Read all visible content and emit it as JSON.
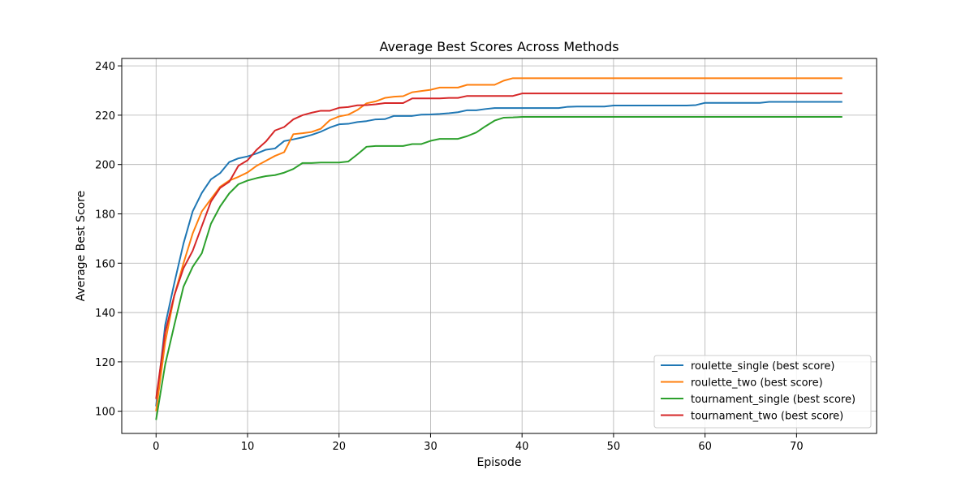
{
  "chart_data": {
    "type": "line",
    "title": "Average Best Scores Across Methods",
    "xlabel": "Episode",
    "ylabel": "Average Best Score",
    "xlim": [
      -3.75,
      78.75
    ],
    "ylim": [
      91,
      243
    ],
    "xticks": [
      0,
      10,
      20,
      30,
      40,
      50,
      60,
      70
    ],
    "yticks": [
      100,
      120,
      140,
      160,
      180,
      200,
      220,
      240
    ],
    "grid": true,
    "legend_position": "lower-right",
    "x": [
      0,
      1,
      2,
      3,
      4,
      5,
      6,
      7,
      8,
      9,
      10,
      11,
      12,
      13,
      14,
      15,
      16,
      17,
      18,
      19,
      20,
      21,
      22,
      23,
      24,
      25,
      26,
      27,
      28,
      29,
      30,
      31,
      32,
      33,
      34,
      35,
      36,
      37,
      38,
      39,
      40,
      41,
      42,
      43,
      44,
      45,
      46,
      47,
      48,
      49,
      50,
      51,
      52,
      53,
      54,
      55,
      56,
      57,
      58,
      59,
      60,
      61,
      62,
      63,
      64,
      65,
      66,
      67,
      68,
      69,
      70,
      71,
      72,
      73,
      74,
      75
    ],
    "series": [
      {
        "name": "roulette_single (best score)",
        "color": "#1f77b4",
        "values": [
          102,
          135,
          152,
          168,
          181,
          188.5,
          194,
          196.5,
          201,
          202.5,
          203.3,
          204.5,
          206,
          206.5,
          209.5,
          210.2,
          211,
          212,
          213.3,
          215,
          216.3,
          216.5,
          217.2,
          217.6,
          218.3,
          218.4,
          219.7,
          219.7,
          219.7,
          220.2,
          220.3,
          220.5,
          220.8,
          221.2,
          222,
          222,
          222.5,
          222.9,
          222.9,
          222.9,
          222.9,
          222.9,
          222.9,
          222.9,
          222.9,
          223.4,
          223.5,
          223.5,
          223.5,
          223.5,
          223.9,
          223.9,
          223.9,
          223.9,
          223.9,
          223.9,
          223.9,
          223.9,
          223.9,
          224.1,
          225,
          225,
          225,
          225,
          225,
          225,
          225,
          225.4,
          225.4,
          225.4,
          225.4,
          225.4,
          225.4,
          225.4,
          225.4,
          225.4
        ]
      },
      {
        "name": "roulette_two (best score)",
        "color": "#ff7f0e",
        "values": [
          100,
          128,
          147,
          160,
          172,
          181,
          186,
          191,
          193.5,
          195,
          196.8,
          199.5,
          201.5,
          203.5,
          205,
          212.3,
          212.7,
          213.2,
          214.5,
          218,
          219.5,
          220.2,
          222.1,
          224.8,
          225.6,
          227,
          227.5,
          227.7,
          229.3,
          229.8,
          230.3,
          231.2,
          231.2,
          231.2,
          232.3,
          232.3,
          232.3,
          232.3,
          234,
          235,
          235,
          235,
          235,
          235,
          235,
          235,
          235,
          235,
          235,
          235,
          235,
          235,
          235,
          235,
          235,
          235,
          235,
          235,
          235,
          235,
          235,
          235,
          235,
          235,
          235,
          235,
          235,
          235,
          235,
          235,
          235,
          235,
          235,
          235,
          235,
          235
        ]
      },
      {
        "name": "tournament_single (best score)",
        "color": "#2ca02c",
        "values": [
          96.5,
          119,
          135,
          150.5,
          158.5,
          164,
          176,
          183,
          188.3,
          192,
          193.5,
          194.5,
          195.3,
          195.7,
          196.7,
          198.2,
          200.6,
          200.6,
          200.8,
          200.8,
          200.8,
          201.2,
          204.1,
          207.2,
          207.5,
          207.5,
          207.5,
          207.5,
          208.3,
          208.3,
          209.6,
          210.4,
          210.4,
          210.4,
          211.5,
          213,
          215.5,
          217.8,
          219,
          219.1,
          219.3,
          219.3,
          219.3,
          219.3,
          219.3,
          219.3,
          219.3,
          219.3,
          219.3,
          219.3,
          219.3,
          219.3,
          219.3,
          219.3,
          219.3,
          219.3,
          219.3,
          219.3,
          219.3,
          219.3,
          219.3,
          219.3,
          219.3,
          219.3,
          219.3,
          219.3,
          219.3,
          219.3,
          219.3,
          219.3,
          219.3,
          219.3,
          219.3,
          219.3,
          219.3,
          219.3
        ]
      },
      {
        "name": "tournament_two (best score)",
        "color": "#d62728",
        "values": [
          105,
          132,
          147,
          158,
          165,
          175,
          185,
          190.5,
          193,
          199.5,
          201.7,
          206,
          209.3,
          213.8,
          215.2,
          218.3,
          220,
          221,
          221.8,
          221.8,
          223,
          223.3,
          224,
          224.1,
          224.4,
          224.9,
          224.9,
          224.9,
          226.8,
          226.8,
          226.8,
          226.8,
          227,
          227,
          227.8,
          227.8,
          227.8,
          227.8,
          227.8,
          227.8,
          228.8,
          228.8,
          228.8,
          228.8,
          228.8,
          228.8,
          228.8,
          228.8,
          228.8,
          228.8,
          228.8,
          228.8,
          228.8,
          228.8,
          228.8,
          228.8,
          228.8,
          228.8,
          228.8,
          228.8,
          228.8,
          228.8,
          228.8,
          228.8,
          228.8,
          228.8,
          228.8,
          228.8,
          228.8,
          228.8,
          228.8,
          228.8,
          228.8,
          228.8,
          228.8,
          228.8
        ]
      }
    ]
  }
}
